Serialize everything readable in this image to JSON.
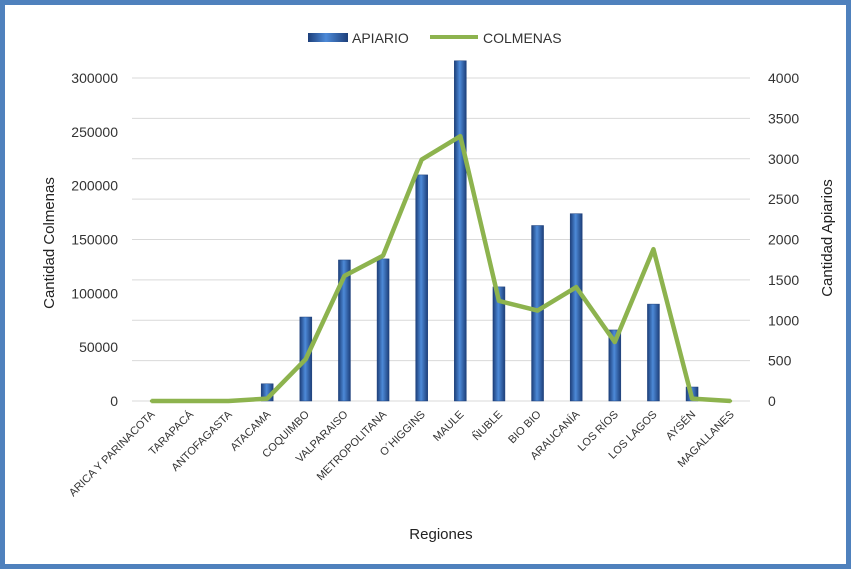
{
  "chart_data": {
    "type": "bar",
    "categories": [
      "ARICA Y PARINACOTA",
      "TARAPACÁ",
      "ANTOFAGASTA",
      "ATACAMA",
      "COQUIMBO",
      "VALPARAISO",
      "METROPOLITANA",
      "O´HIGGINS",
      "MAULE",
      "ÑUBLE",
      "BIO BIO",
      "ARAUCANÍA",
      "LOS RÍOS",
      "LOS LAGOS",
      "AYSÉN",
      "MAGALLANES"
    ],
    "series": [
      {
        "name": "APIARIO",
        "type": "bar",
        "axis": "left",
        "color": "#2e64b4",
        "values": [
          0,
          0,
          0,
          16000,
          78000,
          131000,
          132000,
          210000,
          316000,
          106000,
          163000,
          174000,
          66000,
          90000,
          13000,
          0
        ]
      },
      {
        "name": "COLMENAS",
        "type": "line",
        "axis": "right",
        "color": "#8db34e",
        "values": [
          0,
          0,
          0,
          30,
          520,
          1550,
          1800,
          2990,
          3280,
          1240,
          1120,
          1410,
          730,
          1880,
          30,
          0
        ]
      }
    ],
    "xlabel": "Regiones",
    "ylabel_left": "Cantidad Colmenas",
    "ylabel_right": "Cantidad Apiarios",
    "ylim_left": [
      0,
      300000
    ],
    "yticks_left": [
      "300000",
      "250000",
      "200000",
      "150000",
      "100000",
      "50000",
      "0"
    ],
    "ylim_right": [
      0,
      4000
    ],
    "yticks_right": [
      "4000",
      "3500",
      "3000",
      "2500",
      "2000",
      "1500",
      "1000",
      "500",
      "0"
    ],
    "grid": true,
    "legend": "top-center"
  }
}
